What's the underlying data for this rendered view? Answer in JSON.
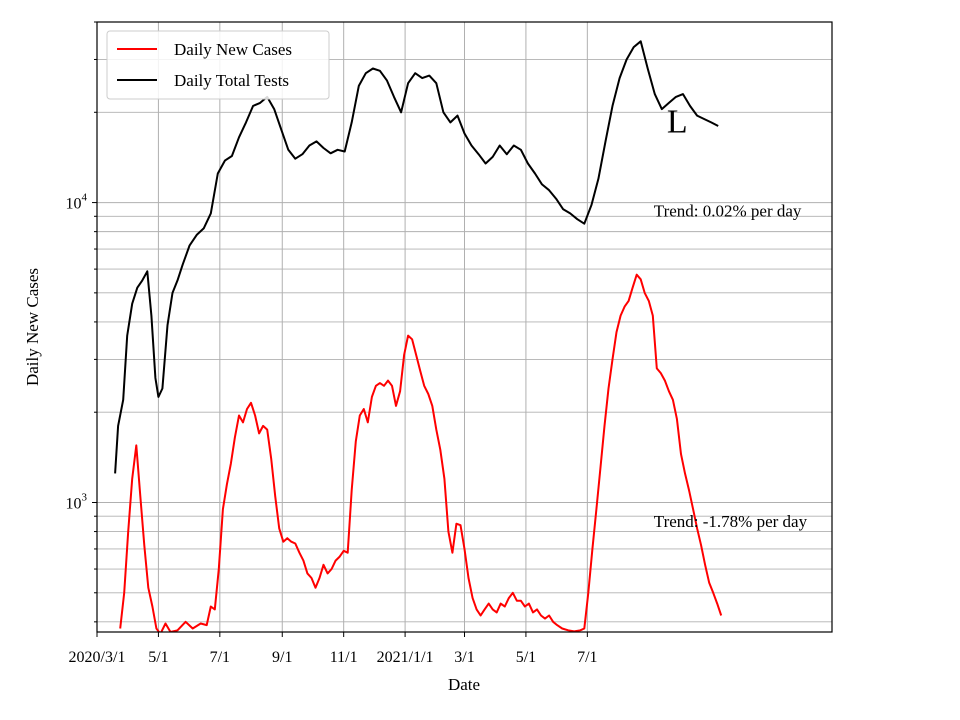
{
  "chart_data": {
    "type": "line",
    "title": "",
    "xlabel": "Date",
    "ylabel": "Daily New Cases",
    "yscale": "log",
    "ylim": [
      370,
      40000
    ],
    "xlim": [
      "2020-03-01",
      "2022-03-01"
    ],
    "grid": true,
    "legend_position": "top-left",
    "x_ticks": [
      {
        "date": "2020-03-01",
        "label": "2020/3/1"
      },
      {
        "date": "2020-05-01",
        "label": "5/1"
      },
      {
        "date": "2020-07-01",
        "label": "7/1"
      },
      {
        "date": "2020-09-01",
        "label": "9/1"
      },
      {
        "date": "2020-11-01",
        "label": "11/1"
      },
      {
        "date": "2021-01-01",
        "label": "2021/1/1"
      },
      {
        "date": "2021-03-01",
        "label": "3/1"
      },
      {
        "date": "2021-05-01",
        "label": "5/1"
      },
      {
        "date": "2021-07-01",
        "label": "7/1"
      }
    ],
    "y_major_ticks": [
      {
        "value": 1000,
        "base": "10",
        "exp": "3"
      },
      {
        "value": 10000,
        "base": "10",
        "exp": "4"
      }
    ],
    "series": [
      {
        "name": "Daily Total Tests",
        "color": "#000000",
        "points": [
          [
            "2020-03-19",
            1250
          ],
          [
            "2020-03-22",
            1800
          ],
          [
            "2020-03-27",
            2200
          ],
          [
            "2020-03-31",
            3600
          ],
          [
            "2020-04-05",
            4600
          ],
          [
            "2020-04-10",
            5200
          ],
          [
            "2020-04-15",
            5500
          ],
          [
            "2020-04-20",
            5900
          ],
          [
            "2020-04-24",
            4200
          ],
          [
            "2020-04-28",
            2600
          ],
          [
            "2020-05-01",
            2250
          ],
          [
            "2020-05-05",
            2400
          ],
          [
            "2020-05-10",
            3900
          ],
          [
            "2020-05-15",
            5000
          ],
          [
            "2020-05-20",
            5500
          ],
          [
            "2020-05-25",
            6200
          ],
          [
            "2020-06-01",
            7200
          ],
          [
            "2020-06-08",
            7800
          ],
          [
            "2020-06-15",
            8200
          ],
          [
            "2020-06-22",
            9200
          ],
          [
            "2020-06-29",
            12500
          ],
          [
            "2020-07-06",
            13800
          ],
          [
            "2020-07-13",
            14300
          ],
          [
            "2020-07-20",
            16500
          ],
          [
            "2020-07-27",
            18500
          ],
          [
            "2020-08-03",
            21000
          ],
          [
            "2020-08-10",
            21500
          ],
          [
            "2020-08-17",
            22500
          ],
          [
            "2020-08-24",
            20500
          ],
          [
            "2020-08-31",
            17500
          ],
          [
            "2020-09-07",
            15000
          ],
          [
            "2020-09-14",
            14000
          ],
          [
            "2020-09-21",
            14500
          ],
          [
            "2020-09-28",
            15500
          ],
          [
            "2020-10-05",
            16000
          ],
          [
            "2020-10-12",
            15200
          ],
          [
            "2020-10-19",
            14600
          ],
          [
            "2020-10-26",
            15000
          ],
          [
            "2020-11-02",
            14800
          ],
          [
            "2020-11-09",
            18500
          ],
          [
            "2020-11-16",
            24500
          ],
          [
            "2020-11-23",
            27000
          ],
          [
            "2020-11-30",
            28000
          ],
          [
            "2020-12-07",
            27500
          ],
          [
            "2020-12-14",
            25500
          ],
          [
            "2020-12-21",
            22500
          ],
          [
            "2020-12-28",
            20000
          ],
          [
            "2021-01-04",
            25000
          ],
          [
            "2021-01-11",
            27000
          ],
          [
            "2021-01-18",
            26000
          ],
          [
            "2021-01-25",
            26500
          ],
          [
            "2021-02-01",
            25000
          ],
          [
            "2021-02-08",
            20000
          ],
          [
            "2021-02-15",
            18500
          ],
          [
            "2021-02-22",
            19500
          ],
          [
            "2021-03-01",
            17000
          ],
          [
            "2021-03-08",
            15500
          ],
          [
            "2021-03-15",
            14500
          ],
          [
            "2021-03-22",
            13500
          ],
          [
            "2021-03-29",
            14200
          ],
          [
            "2021-04-05",
            15500
          ],
          [
            "2021-04-12",
            14500
          ],
          [
            "2021-04-19",
            15500
          ],
          [
            "2021-04-26",
            15000
          ],
          [
            "2021-05-03",
            13500
          ],
          [
            "2021-05-10",
            12500
          ],
          [
            "2021-05-17",
            11500
          ],
          [
            "2021-05-24",
            11000
          ],
          [
            "2021-05-31",
            10300
          ],
          [
            "2021-06-07",
            9500
          ],
          [
            "2021-06-14",
            9200
          ],
          [
            "2021-06-21",
            8800
          ],
          [
            "2021-06-28",
            8500
          ],
          [
            "2021-07-05",
            9800
          ],
          [
            "2021-07-12",
            12000
          ],
          [
            "2021-07-19",
            16000
          ],
          [
            "2021-07-26",
            21000
          ],
          [
            "2021-08-02",
            26000
          ],
          [
            "2021-08-09",
            30000
          ],
          [
            "2021-08-16",
            33000
          ],
          [
            "2021-08-23",
            34500
          ],
          [
            "2021-08-30",
            28000
          ],
          [
            "2021-09-06",
            23000
          ],
          [
            "2021-09-13",
            20500
          ],
          [
            "2021-09-20",
            21500
          ],
          [
            "2021-09-27",
            22500
          ],
          [
            "2021-10-04",
            23000
          ],
          [
            "2021-10-11",
            21000
          ],
          [
            "2021-10-18",
            19500
          ],
          [
            "2021-10-25",
            19000
          ],
          [
            "2021-11-01",
            18500
          ],
          [
            "2021-11-08",
            18000
          ]
        ]
      },
      {
        "name": "Daily New Cases",
        "color": "#ff0000",
        "points": [
          [
            "2020-03-24",
            380
          ],
          [
            "2020-03-28",
            500
          ],
          [
            "2020-04-01",
            800
          ],
          [
            "2020-04-05",
            1200
          ],
          [
            "2020-04-09",
            1550
          ],
          [
            "2020-04-13",
            1050
          ],
          [
            "2020-04-17",
            720
          ],
          [
            "2020-04-21",
            520
          ],
          [
            "2020-04-25",
            450
          ],
          [
            "2020-04-29",
            380
          ],
          [
            "2020-05-03",
            365
          ],
          [
            "2020-05-08",
            395
          ],
          [
            "2020-05-13",
            370
          ],
          [
            "2020-05-20",
            375
          ],
          [
            "2020-05-28",
            400
          ],
          [
            "2020-06-04",
            380
          ],
          [
            "2020-06-12",
            395
          ],
          [
            "2020-06-18",
            390
          ],
          [
            "2020-06-22",
            450
          ],
          [
            "2020-06-26",
            440
          ],
          [
            "2020-06-30",
            600
          ],
          [
            "2020-07-04",
            950
          ],
          [
            "2020-07-08",
            1150
          ],
          [
            "2020-07-12",
            1350
          ],
          [
            "2020-07-16",
            1650
          ],
          [
            "2020-07-20",
            1950
          ],
          [
            "2020-07-24",
            1850
          ],
          [
            "2020-07-28",
            2050
          ],
          [
            "2020-08-01",
            2150
          ],
          [
            "2020-08-05",
            1950
          ],
          [
            "2020-08-09",
            1700
          ],
          [
            "2020-08-13",
            1800
          ],
          [
            "2020-08-17",
            1750
          ],
          [
            "2020-08-21",
            1400
          ],
          [
            "2020-08-25",
            1050
          ],
          [
            "2020-08-29",
            820
          ],
          [
            "2020-09-02",
            740
          ],
          [
            "2020-09-06",
            760
          ],
          [
            "2020-09-10",
            740
          ],
          [
            "2020-09-14",
            730
          ],
          [
            "2020-09-18",
            680
          ],
          [
            "2020-09-22",
            640
          ],
          [
            "2020-09-26",
            580
          ],
          [
            "2020-09-30",
            560
          ],
          [
            "2020-10-04",
            520
          ],
          [
            "2020-10-08",
            560
          ],
          [
            "2020-10-12",
            620
          ],
          [
            "2020-10-16",
            580
          ],
          [
            "2020-10-20",
            600
          ],
          [
            "2020-10-24",
            640
          ],
          [
            "2020-10-28",
            660
          ],
          [
            "2020-11-01",
            690
          ],
          [
            "2020-11-05",
            680
          ],
          [
            "2020-11-09",
            1100
          ],
          [
            "2020-11-13",
            1600
          ],
          [
            "2020-11-17",
            1950
          ],
          [
            "2020-11-21",
            2050
          ],
          [
            "2020-11-25",
            1850
          ],
          [
            "2020-11-29",
            2250
          ],
          [
            "2020-12-03",
            2450
          ],
          [
            "2020-12-07",
            2500
          ],
          [
            "2020-12-11",
            2450
          ],
          [
            "2020-12-15",
            2550
          ],
          [
            "2020-12-19",
            2450
          ],
          [
            "2020-12-23",
            2100
          ],
          [
            "2020-12-27",
            2350
          ],
          [
            "2020-12-31",
            3100
          ],
          [
            "2021-01-04",
            3600
          ],
          [
            "2021-01-08",
            3500
          ],
          [
            "2021-01-12",
            3100
          ],
          [
            "2021-01-16",
            2750
          ],
          [
            "2021-01-20",
            2450
          ],
          [
            "2021-01-24",
            2300
          ],
          [
            "2021-01-28",
            2100
          ],
          [
            "2021-02-01",
            1750
          ],
          [
            "2021-02-05",
            1500
          ],
          [
            "2021-02-09",
            1200
          ],
          [
            "2021-02-13",
            800
          ],
          [
            "2021-02-17",
            680
          ],
          [
            "2021-02-21",
            850
          ],
          [
            "2021-02-25",
            840
          ],
          [
            "2021-03-01",
            700
          ],
          [
            "2021-03-05",
            560
          ],
          [
            "2021-03-09",
            480
          ],
          [
            "2021-03-13",
            440
          ],
          [
            "2021-03-17",
            420
          ],
          [
            "2021-03-21",
            440
          ],
          [
            "2021-03-25",
            460
          ],
          [
            "2021-03-29",
            440
          ],
          [
            "2021-04-02",
            430
          ],
          [
            "2021-04-06",
            460
          ],
          [
            "2021-04-10",
            450
          ],
          [
            "2021-04-14",
            480
          ],
          [
            "2021-04-18",
            500
          ],
          [
            "2021-04-22",
            470
          ],
          [
            "2021-04-26",
            470
          ],
          [
            "2021-04-30",
            450
          ],
          [
            "2021-05-04",
            460
          ],
          [
            "2021-05-08",
            430
          ],
          [
            "2021-05-12",
            440
          ],
          [
            "2021-05-16",
            420
          ],
          [
            "2021-05-20",
            410
          ],
          [
            "2021-05-24",
            420
          ],
          [
            "2021-05-28",
            400
          ],
          [
            "2021-06-01",
            390
          ],
          [
            "2021-06-06",
            380
          ],
          [
            "2021-06-12",
            375
          ],
          [
            "2021-06-18",
            372
          ],
          [
            "2021-06-24",
            375
          ],
          [
            "2021-06-28",
            380
          ],
          [
            "2021-07-02",
            500
          ],
          [
            "2021-07-06",
            700
          ],
          [
            "2021-07-10",
            950
          ],
          [
            "2021-07-14",
            1300
          ],
          [
            "2021-07-18",
            1800
          ],
          [
            "2021-07-22",
            2400
          ],
          [
            "2021-07-26",
            3000
          ],
          [
            "2021-07-30",
            3700
          ],
          [
            "2021-08-03",
            4200
          ],
          [
            "2021-08-07",
            4500
          ],
          [
            "2021-08-11",
            4700
          ],
          [
            "2021-08-15",
            5200
          ],
          [
            "2021-08-19",
            5750
          ],
          [
            "2021-08-23",
            5550
          ],
          [
            "2021-08-27",
            5000
          ],
          [
            "2021-08-31",
            4700
          ],
          [
            "2021-09-04",
            4200
          ],
          [
            "2021-09-08",
            2800
          ],
          [
            "2021-09-12",
            2700
          ],
          [
            "2021-09-16",
            2550
          ],
          [
            "2021-09-20",
            2350
          ],
          [
            "2021-09-24",
            2200
          ],
          [
            "2021-09-28",
            1900
          ],
          [
            "2021-10-02",
            1450
          ],
          [
            "2021-10-06",
            1250
          ],
          [
            "2021-10-10",
            1100
          ],
          [
            "2021-10-14",
            950
          ],
          [
            "2021-10-18",
            820
          ],
          [
            "2021-10-22",
            720
          ],
          [
            "2021-10-26",
            620
          ],
          [
            "2021-10-30",
            540
          ],
          [
            "2021-11-03",
            500
          ],
          [
            "2021-11-07",
            460
          ],
          [
            "2021-11-11",
            420
          ]
        ]
      }
    ],
    "annotations": [
      {
        "text": "Trend: 0.02% per day",
        "date": "2021-09-05",
        "value": 9000
      },
      {
        "text": "Trend: -1.78% per day",
        "date": "2021-09-05",
        "value": 830
      }
    ],
    "corner_mark": {
      "text": "L",
      "date": "2021-09-18",
      "value": 18500
    }
  }
}
